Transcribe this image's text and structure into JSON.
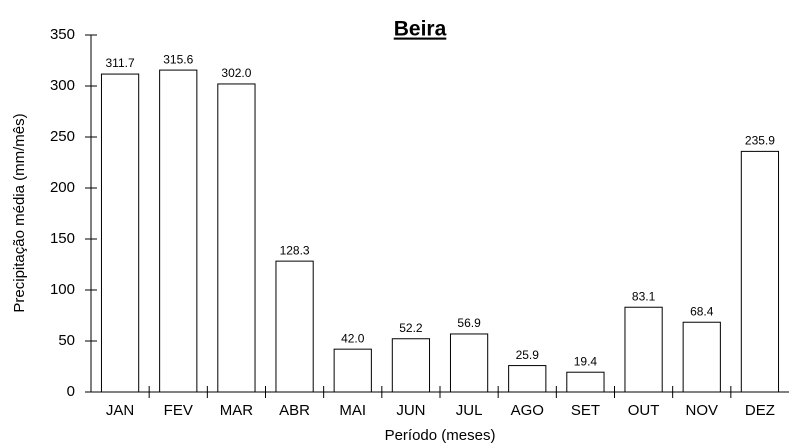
{
  "chart_data": {
    "type": "bar",
    "title": "Beira",
    "x_label": "Período (meses)",
    "y_label": "Precipitação média (mm/mês)",
    "categories": [
      "JAN",
      "FEV",
      "MAR",
      "ABR",
      "MAI",
      "JUN",
      "JUL",
      "AGO",
      "SET",
      "OUT",
      "NOV",
      "DEZ"
    ],
    "values": [
      311.7,
      315.6,
      302.0,
      128.3,
      42.0,
      52.2,
      56.9,
      25.9,
      19.4,
      83.1,
      68.4,
      235.9
    ],
    "value_labels": [
      "311.7",
      "315.6",
      "302.0",
      "128.3",
      "42.0",
      "52.2",
      "56.9",
      "25.9",
      "19.4",
      "83.1",
      "68.4",
      "235.9"
    ],
    "color": "#ffffff",
    "ylim": [
      0,
      350
    ],
    "yticks": [
      0,
      50,
      100,
      150,
      200,
      250,
      300,
      350
    ],
    "grid": false
  }
}
